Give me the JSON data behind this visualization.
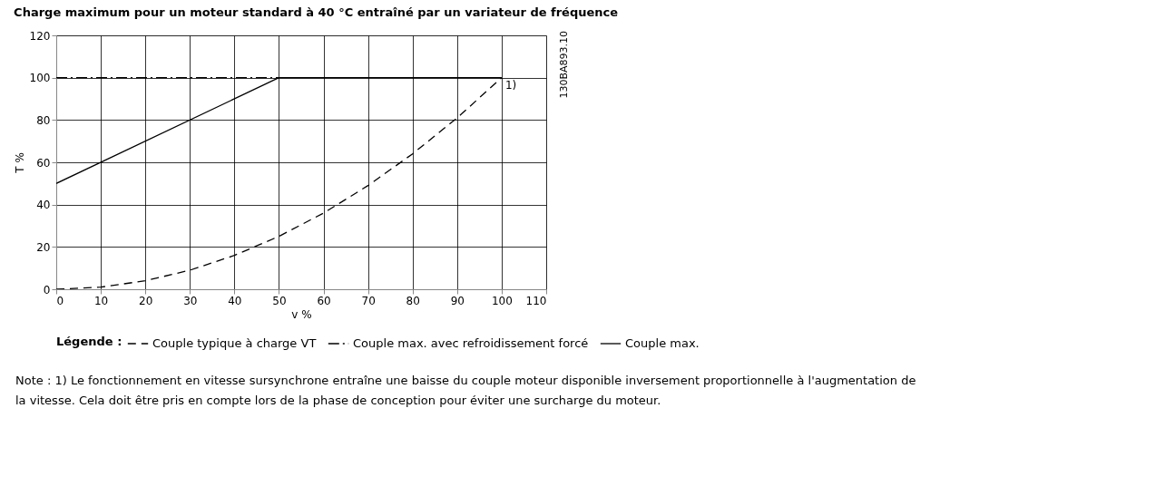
{
  "chart_data": {
    "type": "line",
    "title": "Charge maximum pour un moteur standard à 40 °C entraîné par un variateur de fréquence",
    "xlabel": "v %",
    "ylabel": "T %",
    "legend_title": "Légende :",
    "xlim": [
      0,
      110
    ],
    "xticks": [
      0,
      10,
      20,
      30,
      40,
      50,
      60,
      70,
      80,
      90,
      100,
      110
    ],
    "ylim": [
      0,
      120
    ],
    "yticks": [
      0,
      20,
      40,
      60,
      80,
      100,
      120
    ],
    "grid": true,
    "legend": "bottom",
    "series": [
      {
        "name": "Couple typique à charge VT",
        "color": "#000000",
        "line_style": "dashed",
        "x": [
          0,
          10,
          20,
          30,
          40,
          50,
          60,
          70,
          80,
          90,
          100
        ],
        "values": [
          0,
          1,
          4,
          9,
          16,
          25,
          36,
          49,
          64,
          81,
          100
        ]
      },
      {
        "name": "Couple max. avec refroidissement forcé",
        "color": "#000000",
        "line_style": "dashdot",
        "x": [
          0,
          50
        ],
        "values": [
          100,
          100
        ]
      },
      {
        "name": "Couple max.",
        "color": "#000000",
        "line_style": "solid",
        "x": [
          0,
          50,
          100
        ],
        "values": [
          50,
          100,
          100
        ]
      }
    ],
    "annotations": [
      {
        "text": "1)",
        "x": 100,
        "y": 100
      },
      "130BA893.10",
      "Note : 1) Le fonctionnement en vitesse sursynchrone entraîne une baisse du couple moteur disponible inversement proportionnelle à l'augmentation de la vitesse. Cela doit être pris en compte lors de la phase de conception pour éviter une surcharge du moteur."
    ]
  }
}
